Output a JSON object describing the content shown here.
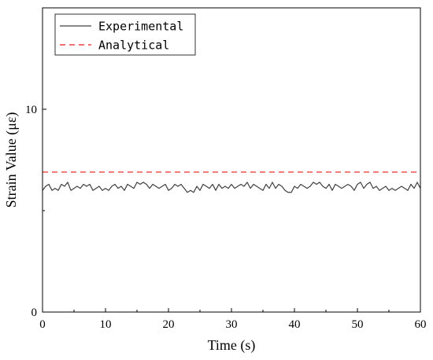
{
  "chart_data": {
    "type": "line",
    "title": "",
    "xlabel": "Time (s)",
    "ylabel": "Strain Value (με)",
    "xlim": [
      0,
      60
    ],
    "ylim": [
      0,
      15
    ],
    "xticks": [
      0,
      10,
      20,
      30,
      40,
      50,
      60
    ],
    "yticks": [
      0,
      10
    ],
    "grid": false,
    "legend_position": "top-left",
    "series": [
      {
        "name": "Experimental",
        "style": "solid",
        "color": "#404040",
        "x": [
          0,
          0.5,
          1,
          1.5,
          2,
          2.5,
          3,
          3.5,
          4,
          4.5,
          5,
          5.5,
          6,
          6.5,
          7,
          7.5,
          8,
          8.5,
          9,
          9.5,
          10,
          10.5,
          11,
          11.5,
          12,
          12.5,
          13,
          13.5,
          14,
          14.5,
          15,
          15.5,
          16,
          16.5,
          17,
          17.5,
          18,
          18.5,
          19,
          19.5,
          20,
          20.5,
          21,
          21.5,
          22,
          22.5,
          23,
          23.5,
          24,
          24.5,
          25,
          25.5,
          26,
          26.5,
          27,
          27.5,
          28,
          28.5,
          29,
          29.5,
          30,
          30.5,
          31,
          31.5,
          32,
          32.5,
          33,
          33.5,
          34,
          34.5,
          35,
          35.5,
          36,
          36.5,
          37,
          37.5,
          38,
          38.5,
          39,
          39.5,
          40,
          40.5,
          41,
          41.5,
          42,
          42.5,
          43,
          43.5,
          44,
          44.5,
          45,
          45.5,
          46,
          46.5,
          47,
          47.5,
          48,
          48.5,
          49,
          49.5,
          50,
          50.5,
          51,
          51.5,
          52,
          52.5,
          53,
          53.5,
          54,
          54.5,
          55,
          55.5,
          56,
          56.5,
          57,
          57.5,
          58,
          58.5,
          59,
          59.5,
          60
        ],
        "values": [
          6.0,
          6.2,
          6.3,
          6.0,
          6.1,
          6.0,
          6.3,
          6.2,
          6.4,
          6.0,
          6.1,
          6.2,
          6.1,
          6.3,
          6.2,
          6.3,
          6.0,
          6.1,
          6.2,
          6.0,
          6.1,
          6.0,
          6.2,
          6.3,
          6.1,
          6.2,
          6.0,
          6.3,
          6.2,
          6.1,
          6.4,
          6.3,
          6.4,
          6.3,
          6.1,
          6.3,
          6.2,
          6.1,
          6.2,
          6.3,
          6.0,
          6.1,
          6.3,
          6.2,
          6.3,
          6.1,
          5.9,
          6.0,
          5.9,
          6.2,
          6.0,
          6.3,
          6.2,
          6.1,
          6.3,
          6.0,
          6.3,
          6.1,
          6.2,
          6.1,
          6.3,
          6.1,
          6.2,
          6.3,
          6.2,
          6.4,
          6.1,
          6.3,
          6.2,
          6.1,
          6.0,
          6.3,
          6.1,
          6.4,
          6.1,
          6.3,
          6.2,
          6.0,
          5.9,
          5.9,
          6.2,
          6.1,
          6.3,
          6.2,
          6.1,
          6.2,
          6.4,
          6.3,
          6.4,
          6.2,
          6.1,
          6.3,
          6.0,
          6.3,
          6.2,
          6.1,
          6.2,
          6.3,
          6.2,
          6.0,
          6.3,
          6.4,
          6.1,
          6.3,
          6.4,
          6.1,
          6.2,
          6.0,
          6.1,
          6.2,
          6.0,
          6.1,
          6.0,
          6.1,
          6.2,
          6.1,
          6.0,
          6.3,
          6.1,
          6.4,
          6.1
        ]
      },
      {
        "name": "Analytical",
        "style": "dashed",
        "color": "#f04040",
        "x": [
          0,
          60
        ],
        "values": [
          6.9,
          6.9
        ]
      }
    ]
  }
}
